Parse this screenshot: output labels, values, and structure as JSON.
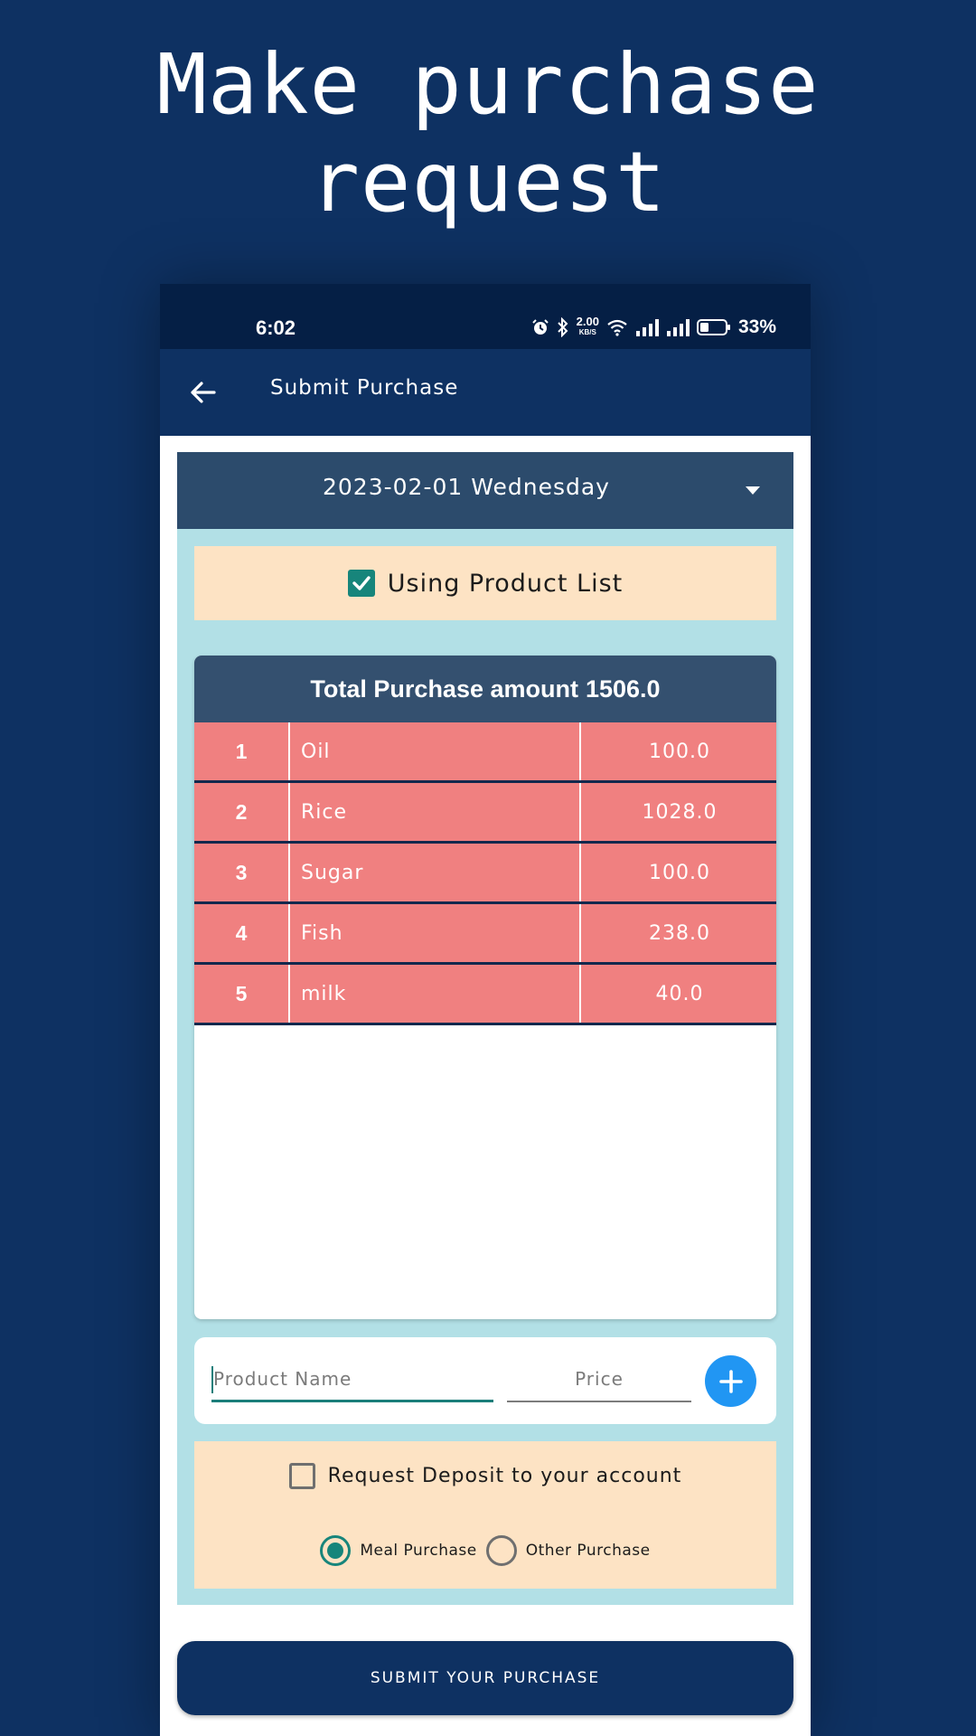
{
  "promo": {
    "title": "Make purchase request"
  },
  "status_bar": {
    "time": "6:02",
    "net_speed_value": "2.00",
    "net_speed_unit": "KB/S",
    "battery": "33%",
    "icons": [
      "alarm-icon",
      "bluetooth-icon",
      "wifi-icon",
      "signal-icon",
      "signal-icon",
      "battery-icon"
    ]
  },
  "app_bar": {
    "title": "Submit Purchase",
    "back_icon": "arrow-left-icon"
  },
  "date_select": {
    "value": "2023-02-01 Wednesday",
    "icon": "dropdown-arrow-icon"
  },
  "product_list_toggle": {
    "label": "Using Product List",
    "checked": true
  },
  "purchase_table": {
    "header_label": "Total Purchase amount",
    "total": "1506.0",
    "rows": [
      {
        "num": "1",
        "name": "Oil",
        "price": "100.0"
      },
      {
        "num": "2",
        "name": "Rice",
        "price": "1028.0"
      },
      {
        "num": "3",
        "name": "Sugar",
        "price": "100.0"
      },
      {
        "num": "4",
        "name": "Fish",
        "price": "238.0"
      },
      {
        "num": "5",
        "name": "milk",
        "price": "40.0"
      }
    ]
  },
  "add_product": {
    "name_placeholder": "Product Name",
    "price_placeholder": "Price",
    "add_icon": "plus-icon"
  },
  "options": {
    "deposit_label": "Request Deposit to your account",
    "deposit_checked": false,
    "radio_meal_label": "Meal Purchase",
    "radio_other_label": "Other Purchase",
    "selected": "Meal Purchase"
  },
  "submit": {
    "label": "SUBMIT YOUR PURCHASE"
  },
  "colors": {
    "background": "#0e3162",
    "panel": "#b2e0e6",
    "row": "#f08080",
    "accent": "#17857b",
    "fab": "#2196f3",
    "cream": "#fde3c4"
  }
}
